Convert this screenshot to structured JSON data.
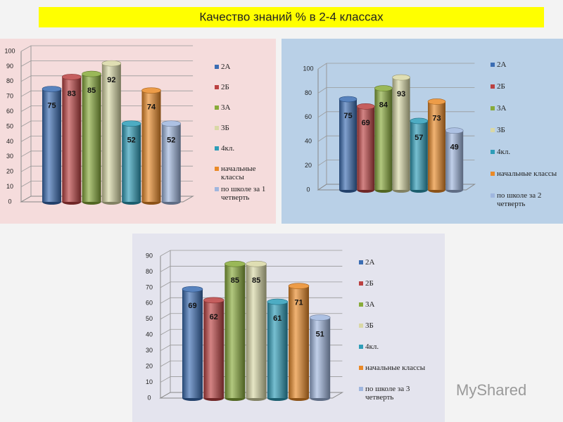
{
  "title": "Качество знаний % в 2-4 классах",
  "watermark": "MyShared",
  "chart_data": [
    {
      "type": "bar",
      "categories": [
        null
      ],
      "ylim": [
        0,
        100
      ],
      "yticks": [
        0,
        10,
        20,
        30,
        40,
        50,
        60,
        70,
        80,
        90,
        100
      ],
      "grid": true,
      "legend": "right",
      "series": [
        {
          "name": "2А",
          "color": "#3b6db3",
          "values": [
            75
          ]
        },
        {
          "name": "2Б",
          "color": "#bb4141",
          "values": [
            83
          ]
        },
        {
          "name": "3А",
          "color": "#88ab3a",
          "values": [
            85
          ]
        },
        {
          "name": "3Б",
          "color": "#d9d8a6",
          "values": [
            92
          ]
        },
        {
          "name": "4кл.",
          "color": "#2e9db8",
          "values": [
            52
          ]
        },
        {
          "name": "начальные классы",
          "color": "#ea8a28",
          "values": [
            74
          ]
        },
        {
          "name": "по школе за 1 четверть",
          "color": "#9fb6de",
          "values": [
            52
          ]
        }
      ]
    },
    {
      "type": "bar",
      "categories": [
        null
      ],
      "ylim": [
        0,
        100
      ],
      "yticks": [
        0,
        20,
        40,
        60,
        80,
        100
      ],
      "grid": true,
      "legend": "right",
      "series": [
        {
          "name": "2А",
          "color": "#3b6db3",
          "values": [
            75
          ]
        },
        {
          "name": "2Б",
          "color": "#bb4141",
          "values": [
            69
          ]
        },
        {
          "name": "3А",
          "color": "#88ab3a",
          "values": [
            84
          ]
        },
        {
          "name": "3Б",
          "color": "#d9d8a6",
          "values": [
            93
          ]
        },
        {
          "name": "4кл.",
          "color": "#2e9db8",
          "values": [
            57
          ]
        },
        {
          "name": "начальные классы",
          "color": "#ea8a28",
          "values": [
            73
          ]
        },
        {
          "name": "по школе за 2 четверть",
          "color": "#9fb6de",
          "values": [
            49
          ]
        }
      ]
    },
    {
      "type": "bar",
      "categories": [
        null
      ],
      "ylim": [
        0,
        90
      ],
      "yticks": [
        0,
        10,
        20,
        30,
        40,
        50,
        60,
        70,
        80,
        90
      ],
      "grid": true,
      "legend": "right",
      "series": [
        {
          "name": "2А",
          "color": "#3b6db3",
          "values": [
            69
          ]
        },
        {
          "name": "2Б",
          "color": "#bb4141",
          "values": [
            62
          ]
        },
        {
          "name": "3А",
          "color": "#88ab3a",
          "values": [
            85
          ]
        },
        {
          "name": "3Б",
          "color": "#d9d8a6",
          "values": [
            85
          ]
        },
        {
          "name": "4кл.",
          "color": "#2e9db8",
          "values": [
            61
          ]
        },
        {
          "name": "начальные классы",
          "color": "#ea8a28",
          "values": [
            71
          ]
        },
        {
          "name": "по школе за 3 четверть",
          "color": "#9fb6de",
          "values": [
            51
          ]
        }
      ]
    }
  ]
}
